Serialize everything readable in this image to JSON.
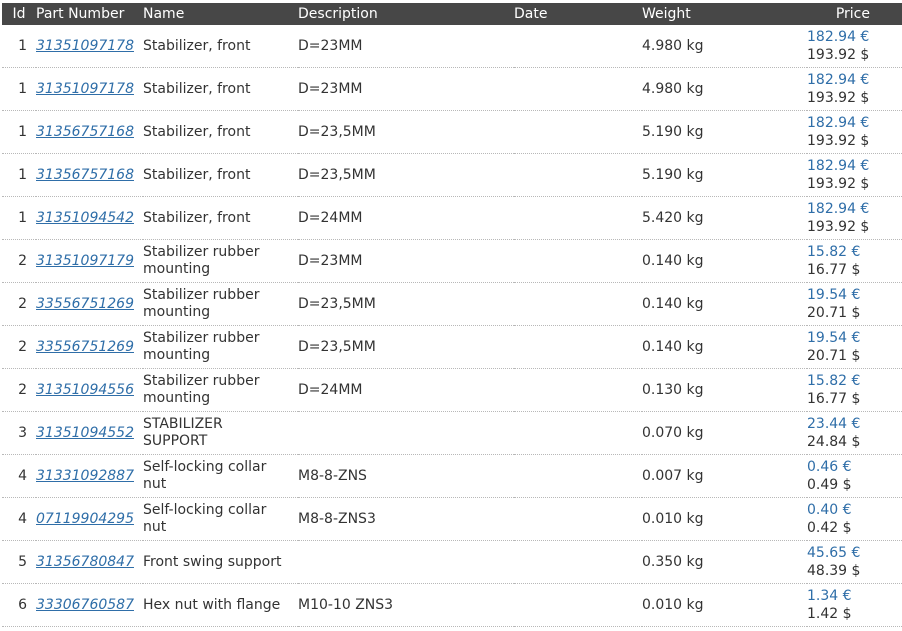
{
  "columns": {
    "id": "Id",
    "part_number": "Part Number",
    "name": "Name",
    "description": "Description",
    "date": "Date",
    "weight": "Weight",
    "price": "Price"
  },
  "rows": [
    {
      "id": "1",
      "part_number": "31351097178",
      "name": "Stabilizer, front",
      "description": "D=23MM",
      "date": "",
      "weight": "4.980 kg",
      "price_eur": "182.94 €",
      "price_usd": "193.92 $"
    },
    {
      "id": "1",
      "part_number": "31351097178",
      "name": "Stabilizer, front",
      "description": "D=23MM",
      "date": "",
      "weight": "4.980 kg",
      "price_eur": "182.94 €",
      "price_usd": "193.92 $"
    },
    {
      "id": "1",
      "part_number": "31356757168",
      "name": "Stabilizer, front",
      "description": "D=23,5MM",
      "date": "",
      "weight": "5.190 kg",
      "price_eur": "182.94 €",
      "price_usd": "193.92 $"
    },
    {
      "id": "1",
      "part_number": "31356757168",
      "name": "Stabilizer, front",
      "description": "D=23,5MM",
      "date": "",
      "weight": "5.190 kg",
      "price_eur": "182.94 €",
      "price_usd": "193.92 $"
    },
    {
      "id": "1",
      "part_number": "31351094542",
      "name": "Stabilizer, front",
      "description": "D=24MM",
      "date": "",
      "weight": "5.420 kg",
      "price_eur": "182.94 €",
      "price_usd": "193.92 $"
    },
    {
      "id": "2",
      "part_number": "31351097179",
      "name": "Stabilizer rubber mounting",
      "description": "D=23MM",
      "date": "",
      "weight": "0.140 kg",
      "price_eur": "15.82 €",
      "price_usd": "16.77 $"
    },
    {
      "id": "2",
      "part_number": "33556751269",
      "name": "Stabilizer rubber mounting",
      "description": "D=23,5MM",
      "date": "",
      "weight": "0.140 kg",
      "price_eur": "19.54 €",
      "price_usd": "20.71 $"
    },
    {
      "id": "2",
      "part_number": "33556751269",
      "name": "Stabilizer rubber mounting",
      "description": "D=23,5MM",
      "date": "",
      "weight": "0.140 kg",
      "price_eur": "19.54 €",
      "price_usd": "20.71 $"
    },
    {
      "id": "2",
      "part_number": "31351094556",
      "name": "Stabilizer rubber mounting",
      "description": "D=24MM",
      "date": "",
      "weight": "0.130 kg",
      "price_eur": "15.82 €",
      "price_usd": "16.77 $"
    },
    {
      "id": "3",
      "part_number": "31351094552",
      "name": "STABILIZER SUPPORT",
      "description": "",
      "date": "",
      "weight": "0.070 kg",
      "price_eur": "23.44 €",
      "price_usd": "24.84 $"
    },
    {
      "id": "4",
      "part_number": "31331092887",
      "name": "Self-locking collar nut",
      "description": "M8-8-ZNS",
      "date": "",
      "weight": "0.007 kg",
      "price_eur": "0.46 €",
      "price_usd": "0.49 $"
    },
    {
      "id": "4",
      "part_number": "07119904295",
      "name": "Self-locking collar nut",
      "description": "M8-8-ZNS3",
      "date": "",
      "weight": "0.010 kg",
      "price_eur": "0.40 €",
      "price_usd": "0.42 $"
    },
    {
      "id": "5",
      "part_number": "31356780847",
      "name": "Front swing support",
      "description": "",
      "date": "",
      "weight": "0.350 kg",
      "price_eur": "45.65 €",
      "price_usd": "48.39 $"
    },
    {
      "id": "6",
      "part_number": "33306760587",
      "name": "Hex nut with flange",
      "description": "M10-10 ZNS3",
      "date": "",
      "weight": "0.010 kg",
      "price_eur": "1.34 €",
      "price_usd": "1.42 $"
    }
  ]
}
